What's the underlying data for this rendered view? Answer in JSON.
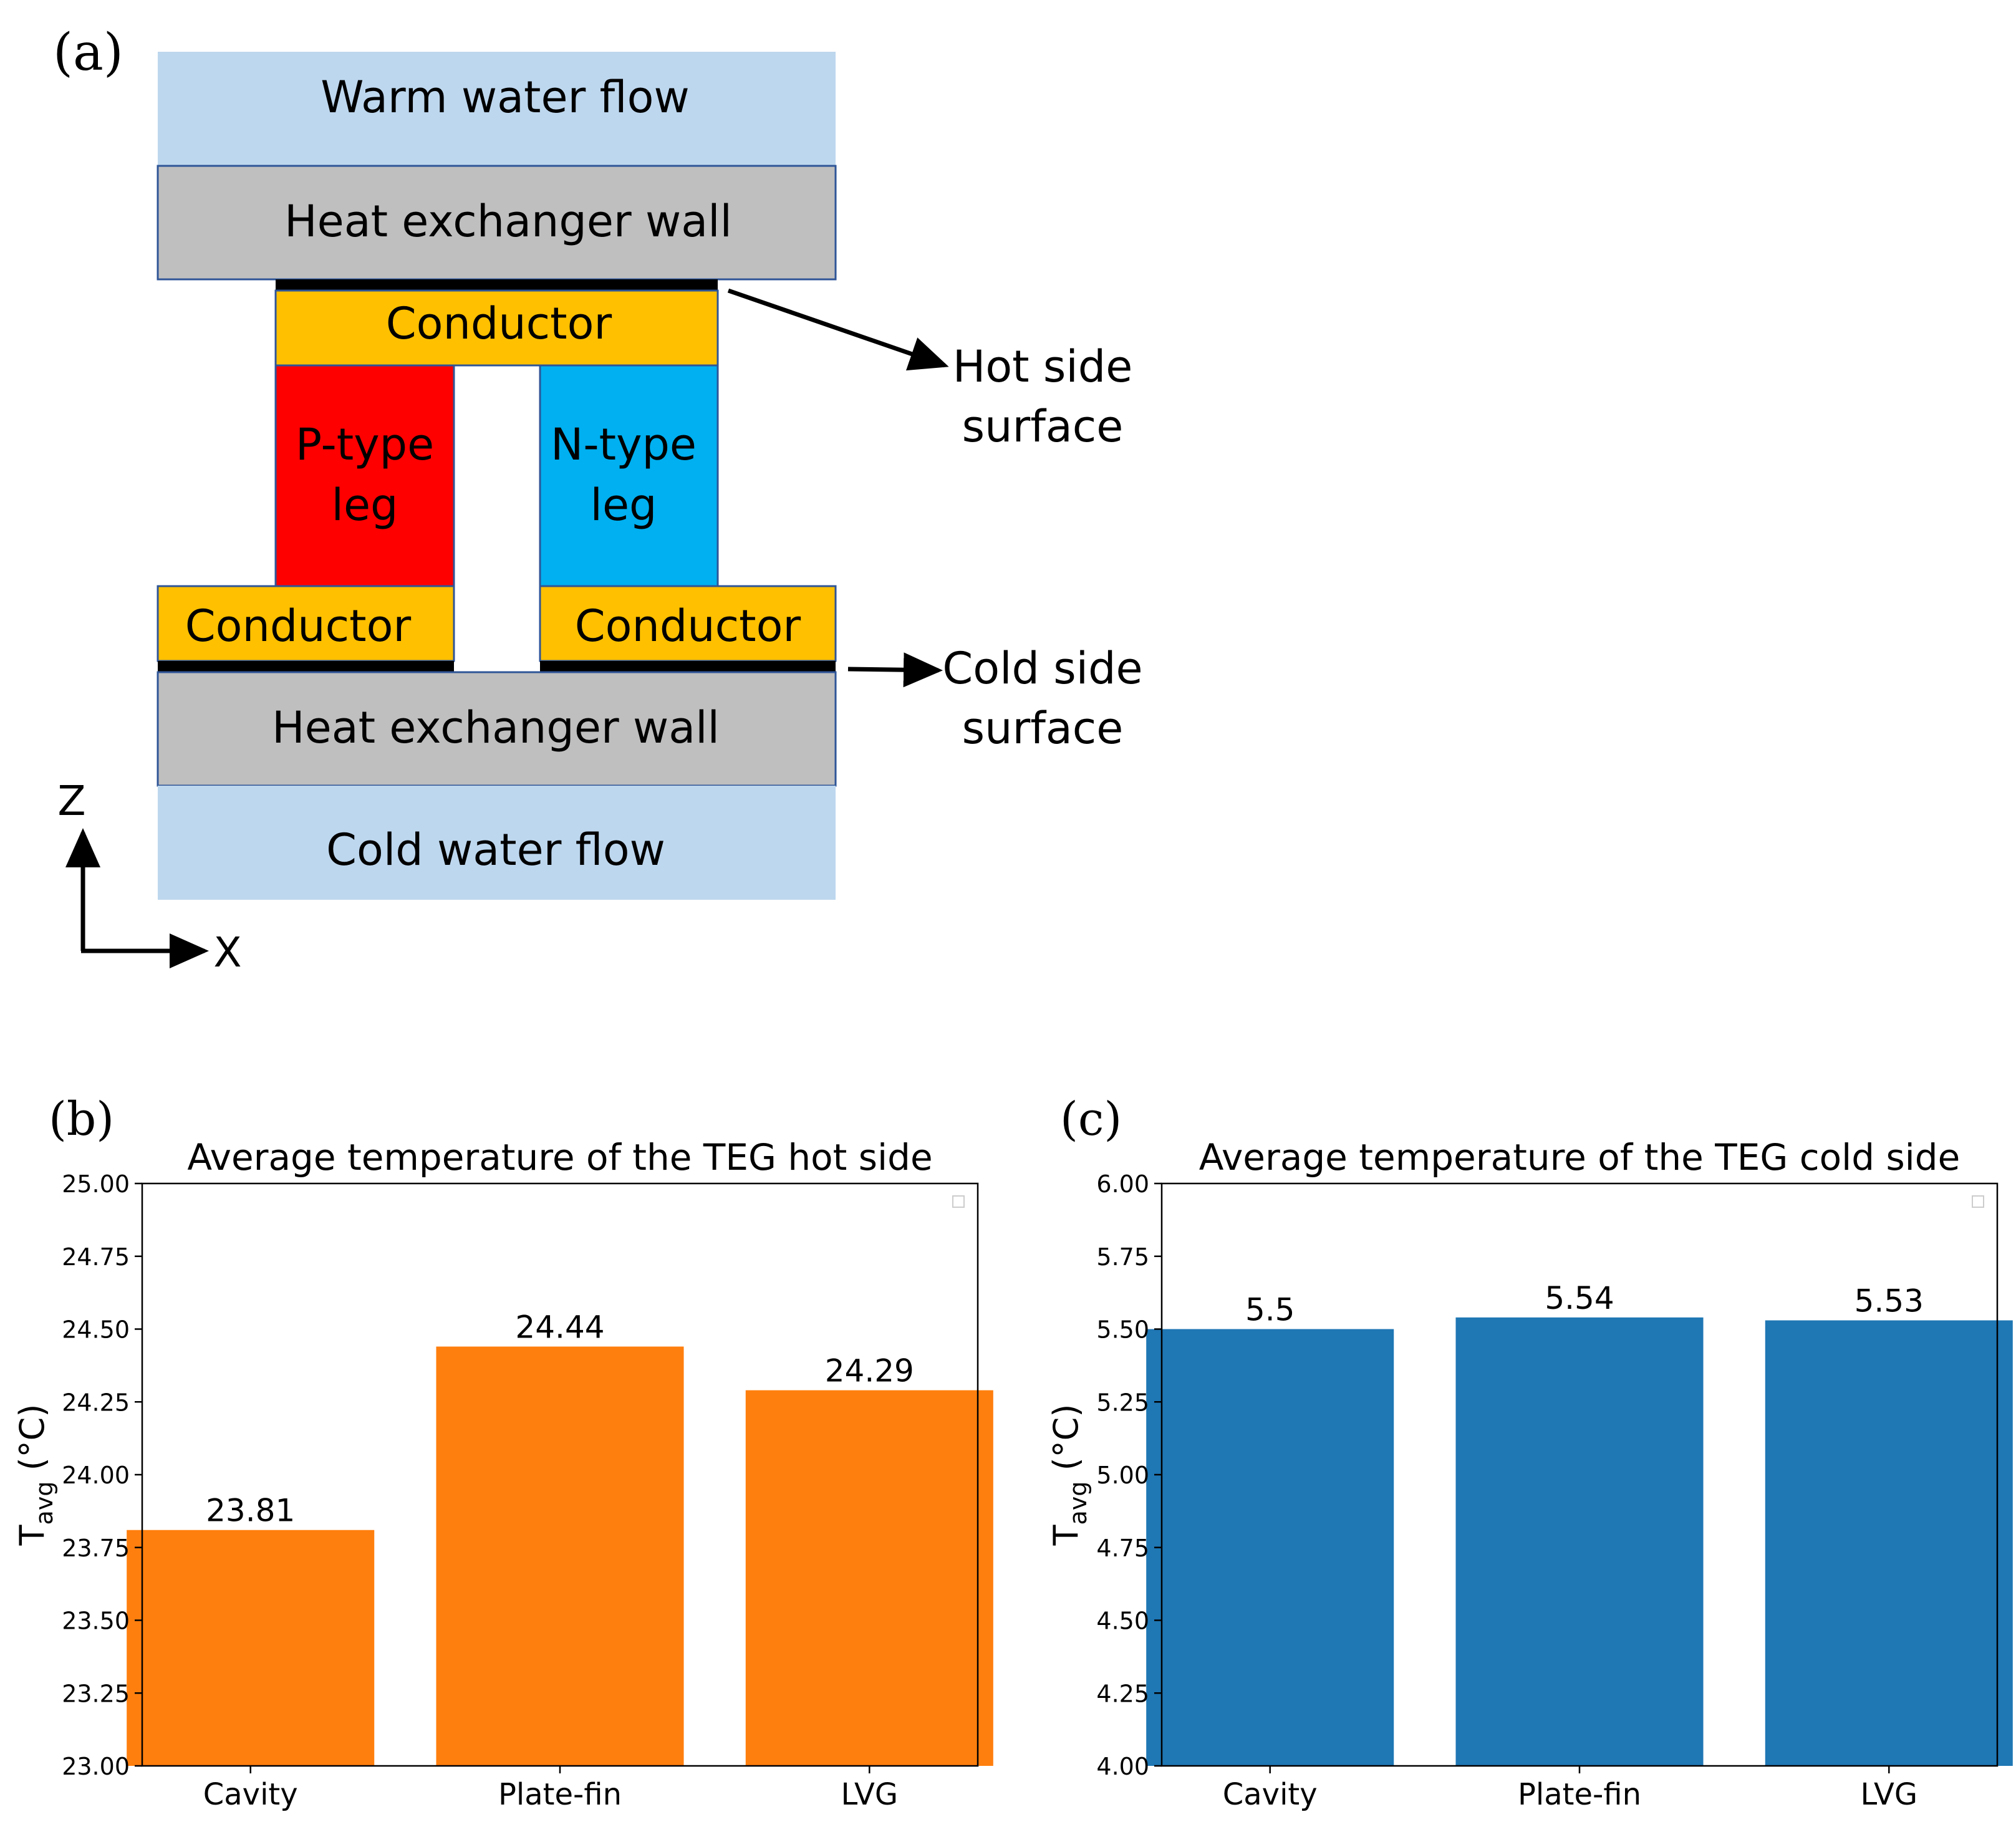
{
  "diagram": {
    "panel_label": "(a)",
    "layers": {
      "warm_water": "Warm water flow",
      "hx_wall_top": "Heat exchanger wall",
      "conductor_top": "Conductor",
      "p_leg_line1": "P-type",
      "p_leg_line2": "leg",
      "n_leg_line1": "N-type",
      "n_leg_line2": "leg",
      "conductor_left": "Conductor",
      "conductor_right": "Conductor",
      "hx_wall_bottom": "Heat exchanger wall",
      "cold_water": "Cold water flow"
    },
    "annotations": {
      "hot_line1": "Hot side",
      "hot_line2": "surface",
      "cold_line1": "Cold side",
      "cold_line2": "surface"
    },
    "axes": {
      "z": "Z",
      "x": "X"
    },
    "colors": {
      "water": "#bdd7ee",
      "wall": "#bfbfbf",
      "conductor": "#ffc000",
      "p_leg": "#ff0000",
      "n_leg": "#00b0f0",
      "outline": "#2f5597"
    }
  },
  "chart_data": [
    {
      "panel_label": "(b)",
      "type": "bar",
      "title": "Average temperature of the TEG hot side",
      "categories": [
        "Cavity",
        "Plate-fin",
        "LVG"
      ],
      "values": [
        23.81,
        24.44,
        24.29
      ],
      "value_labels": [
        "23.81",
        "24.44",
        "24.29"
      ],
      "ylabel": "T",
      "ylabel_sub": "avg",
      "ylabel_unit": " (°C)",
      "ylim": [
        23.0,
        25.0
      ],
      "yticks": [
        "23.00",
        "23.25",
        "23.50",
        "23.75",
        "24.00",
        "24.25",
        "24.50",
        "24.75",
        "25.00"
      ],
      "color": "#ff7f0e"
    },
    {
      "panel_label": "(c)",
      "type": "bar",
      "title": "Average temperature of the TEG cold side",
      "categories": [
        "Cavity",
        "Plate-fin",
        "LVG"
      ],
      "values": [
        5.5,
        5.54,
        5.53
      ],
      "value_labels": [
        "5.5",
        "5.54",
        "5.53"
      ],
      "ylabel": "T",
      "ylabel_sub": "avg",
      "ylabel_unit": " (°C)",
      "ylim": [
        4.0,
        6.0
      ],
      "yticks": [
        "4.00",
        "4.25",
        "4.50",
        "4.75",
        "5.00",
        "5.25",
        "5.50",
        "5.75",
        "6.00"
      ],
      "color": "#1f77b4"
    }
  ]
}
